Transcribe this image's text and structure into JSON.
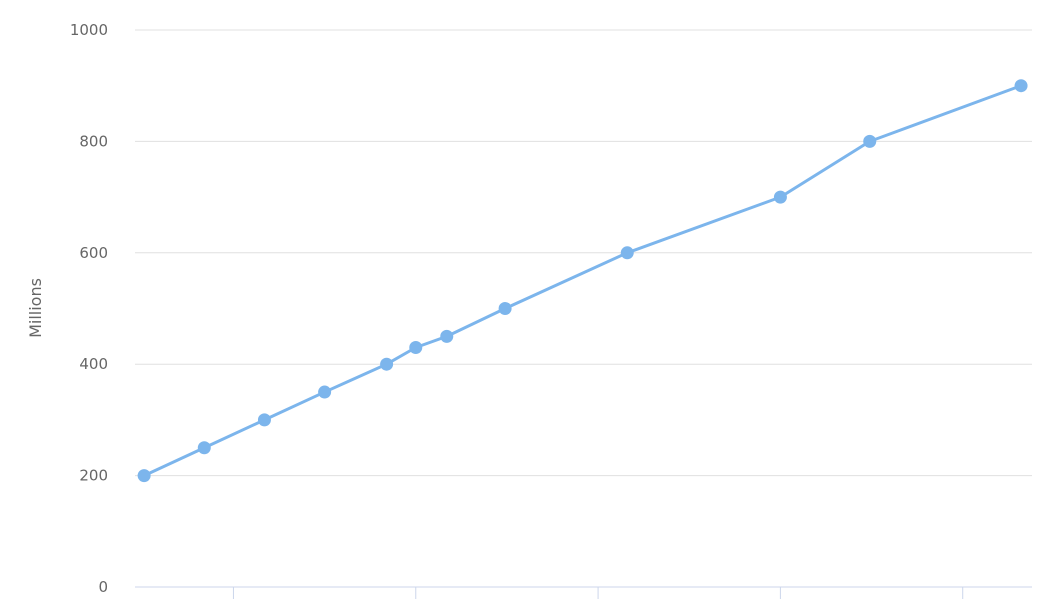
{
  "chart_data": {
    "type": "line",
    "title": "",
    "xlabel": "",
    "ylabel": "Millions",
    "ylim": [
      0,
      1000
    ],
    "xlim": [
      0.46,
      5.38
    ],
    "yticks": [
      "0",
      "200",
      "400",
      "600",
      "800",
      "1000"
    ],
    "xticks": [
      1,
      2,
      3,
      4,
      5
    ],
    "grid": "horizontal",
    "legend": "none",
    "color": "#7cb5ec",
    "x": [
      0.51,
      0.84,
      1.17,
      1.5,
      1.84,
      2.0,
      2.17,
      2.49,
      3.16,
      4.0,
      4.49,
      5.32
    ],
    "values": [
      200,
      250,
      300,
      350,
      400,
      430,
      450,
      500,
      600,
      700,
      800,
      900
    ]
  }
}
